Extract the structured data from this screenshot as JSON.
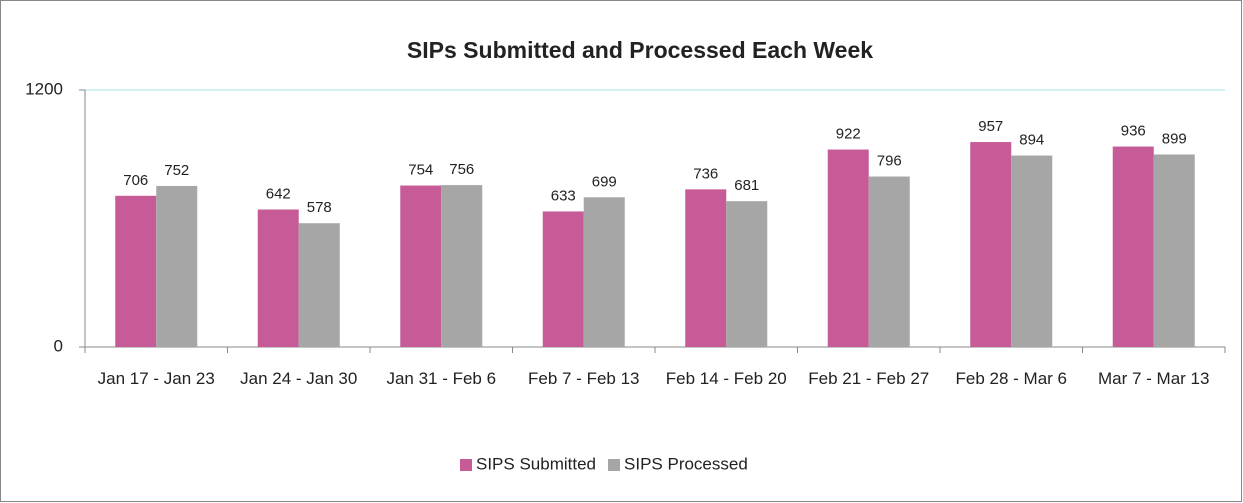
{
  "chart_data": {
    "type": "bar",
    "title": "SIPs Submitted and Processed Each Week",
    "categories": [
      "Jan 17 - Jan 23",
      "Jan 24 - Jan 30",
      "Jan 31 - Feb 6",
      "Feb 7 - Feb 13",
      "Feb 14 - Feb 20",
      "Feb 21 - Feb 27",
      "Feb 28 - Mar 6",
      "Mar 7 - Mar 13"
    ],
    "series": [
      {
        "name": "SIPS Submitted",
        "color": "#c65b98",
        "values": [
          706,
          642,
          754,
          633,
          736,
          922,
          957,
          936
        ]
      },
      {
        "name": "SIPS Processed",
        "color": "#a6a6a6",
        "values": [
          752,
          578,
          756,
          699,
          681,
          796,
          894,
          899
        ]
      }
    ],
    "ylim": [
      0,
      1200
    ],
    "yticks": [
      0,
      1200
    ],
    "grid": true,
    "legend": "bottom",
    "data_labels": true
  }
}
